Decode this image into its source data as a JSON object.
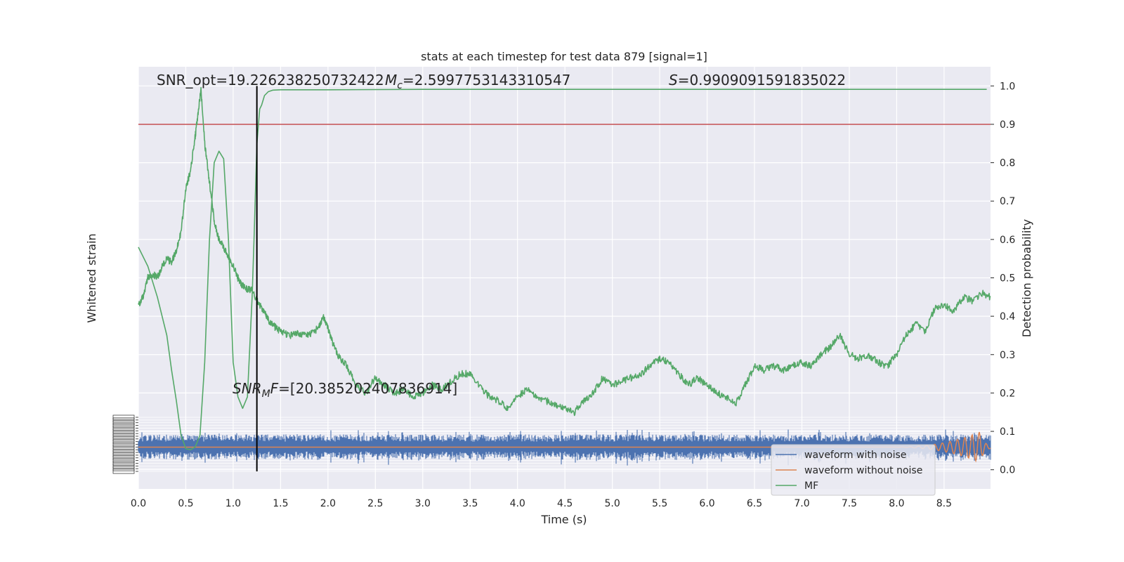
{
  "chart_data": {
    "type": "line",
    "title": "stats at each timestep for test data 879 [signal=1]",
    "xlabel": "Time (s)",
    "ylabel_left": "Whitened strain",
    "ylabel_right": "Detection probability",
    "xlim": [
      0,
      8.99
    ],
    "ylim_right": [
      -0.05,
      1.05
    ],
    "xticks": [
      "0.0",
      "0.5",
      "1.0",
      "1.5",
      "2.0",
      "2.5",
      "3.0",
      "3.5",
      "4.0",
      "4.5",
      "5.0",
      "5.5",
      "6.0",
      "6.5",
      "7.0",
      "7.5",
      "8.0",
      "8.5"
    ],
    "yticks_right": [
      "0.0",
      "0.1",
      "0.2",
      "0.3",
      "0.4",
      "0.5",
      "0.6",
      "0.7",
      "0.8",
      "0.9",
      "1.0"
    ],
    "grid": true,
    "legend_position": "lower-right",
    "annotations": {
      "snr_opt": "SNR_opt=19.226238250732422",
      "mc": "=2.5997753143310547",
      "s_value": "=0.9909091591835022",
      "snr_mf": "=[20.385202407836914]"
    },
    "threshold": 0.9,
    "marker_time": 1.25,
    "colors": {
      "noise": "#4c72b0",
      "clean": "#dd8452",
      "mf": "#55a868",
      "threshold": "#c44e52",
      "marker": "#000000",
      "panel": "#eaeaf2",
      "grid": "#ffffff"
    },
    "series": [
      {
        "name": "waveform with noise",
        "color": "#4c72b0",
        "description_points": {
          "amplitude": 0.3,
          "mean": 0
        }
      },
      {
        "name": "waveform without noise",
        "color": "#dd8452",
        "chirp_peak_time": 8.88,
        "chirp_peak_amplitude": 0.35
      },
      {
        "name": "MF",
        "color": "#55a868",
        "x": [
          0.0,
          0.1,
          0.2,
          0.3,
          0.35,
          0.4,
          0.45,
          0.5,
          0.55,
          0.6,
          0.65,
          0.7,
          0.75,
          0.8,
          0.85,
          0.9,
          0.95,
          1.0,
          1.05,
          1.1,
          1.15,
          1.2,
          1.22,
          1.25,
          1.28,
          1.3,
          1.33,
          1.37,
          1.42,
          1.5,
          1.7,
          2.0,
          3.0,
          4.0,
          5.0,
          6.0,
          7.0,
          8.0,
          8.95
        ],
        "y": [
          0.58,
          0.53,
          0.45,
          0.35,
          0.26,
          0.18,
          0.09,
          0.055,
          0.052,
          0.06,
          0.09,
          0.28,
          0.6,
          0.8,
          0.83,
          0.81,
          0.6,
          0.28,
          0.19,
          0.16,
          0.19,
          0.45,
          0.6,
          0.85,
          0.94,
          0.95,
          0.975,
          0.985,
          0.989,
          0.99,
          0.99,
          0.99,
          0.991,
          0.991,
          0.991,
          0.991,
          0.991,
          0.991,
          0.991
        ]
      },
      {
        "name": "detection probability",
        "color": "#55a868",
        "x": [
          0.0,
          0.05,
          0.1,
          0.15,
          0.2,
          0.25,
          0.3,
          0.35,
          0.4,
          0.45,
          0.5,
          0.55,
          0.6,
          0.63,
          0.66,
          0.7,
          0.75,
          0.8,
          0.85,
          0.9,
          0.95,
          1.0,
          1.05,
          1.1,
          1.15,
          1.2,
          1.25,
          1.3,
          1.35,
          1.4,
          1.45,
          1.5,
          1.6,
          1.7,
          1.8,
          1.9,
          1.95,
          2.0,
          2.05,
          2.1,
          2.2,
          2.3,
          2.4,
          2.5,
          2.6,
          2.7,
          2.8,
          2.9,
          3.0,
          3.1,
          3.2,
          3.3,
          3.4,
          3.5,
          3.6,
          3.7,
          3.8,
          3.9,
          4.0,
          4.1,
          4.2,
          4.3,
          4.4,
          4.5,
          4.6,
          4.7,
          4.8,
          4.9,
          5.0,
          5.1,
          5.2,
          5.3,
          5.4,
          5.5,
          5.6,
          5.7,
          5.8,
          5.9,
          6.0,
          6.1,
          6.2,
          6.3,
          6.4,
          6.5,
          6.6,
          6.7,
          6.8,
          6.9,
          7.0,
          7.1,
          7.2,
          7.3,
          7.4,
          7.5,
          7.6,
          7.7,
          7.8,
          7.9,
          8.0,
          8.1,
          8.2,
          8.3,
          8.4,
          8.5,
          8.6,
          8.7,
          8.8,
          8.9,
          8.99
        ],
        "y": [
          0.43,
          0.45,
          0.5,
          0.51,
          0.5,
          0.53,
          0.55,
          0.54,
          0.57,
          0.62,
          0.73,
          0.78,
          0.87,
          0.93,
          0.99,
          0.85,
          0.75,
          0.65,
          0.6,
          0.58,
          0.55,
          0.53,
          0.5,
          0.48,
          0.47,
          0.47,
          0.44,
          0.42,
          0.4,
          0.38,
          0.37,
          0.36,
          0.35,
          0.355,
          0.35,
          0.37,
          0.4,
          0.37,
          0.33,
          0.3,
          0.27,
          0.22,
          0.2,
          0.24,
          0.22,
          0.2,
          0.21,
          0.19,
          0.2,
          0.22,
          0.21,
          0.23,
          0.25,
          0.25,
          0.22,
          0.19,
          0.18,
          0.16,
          0.19,
          0.21,
          0.19,
          0.18,
          0.17,
          0.16,
          0.15,
          0.18,
          0.2,
          0.24,
          0.22,
          0.23,
          0.24,
          0.25,
          0.27,
          0.29,
          0.28,
          0.25,
          0.22,
          0.24,
          0.22,
          0.2,
          0.19,
          0.17,
          0.22,
          0.27,
          0.26,
          0.27,
          0.26,
          0.27,
          0.28,
          0.27,
          0.3,
          0.32,
          0.35,
          0.3,
          0.29,
          0.3,
          0.28,
          0.27,
          0.3,
          0.35,
          0.38,
          0.36,
          0.42,
          0.43,
          0.41,
          0.45,
          0.44,
          0.46,
          0.45
        ]
      }
    ]
  }
}
